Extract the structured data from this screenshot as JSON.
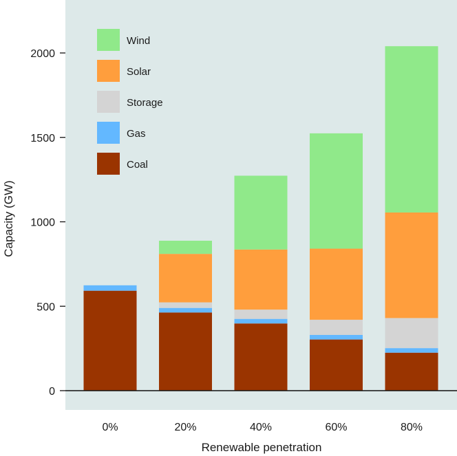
{
  "chart_data": {
    "type": "bar",
    "stacked": true,
    "categories": [
      "0%",
      "20%",
      "40%",
      "60%",
      "80%"
    ],
    "xlabel": "Renewable penetration",
    "ylabel": "Capacity (GW)",
    "ylim": [
      0,
      2220
    ],
    "yticks": [
      0,
      500,
      1000,
      1500,
      2000
    ],
    "legend_position": "top-left",
    "background": "#dde9e9",
    "series": [
      {
        "name": "Coal",
        "color": "#9a3400",
        "values": [
          592,
          463,
          398,
          303,
          225
        ]
      },
      {
        "name": "Gas",
        "color": "#63b8ff",
        "values": [
          32,
          27,
          27,
          27,
          27
        ]
      },
      {
        "name": "Storage",
        "color": "#d4d4d4",
        "values": [
          0,
          33,
          55,
          90,
          178
        ]
      },
      {
        "name": "Solar",
        "color": "#ff9e3d",
        "values": [
          0,
          287,
          356,
          421,
          625
        ]
      },
      {
        "name": "Wind",
        "color": "#90e98a",
        "values": [
          0,
          78,
          437,
          683,
          985
        ]
      }
    ],
    "legend_order": [
      "Wind",
      "Solar",
      "Storage",
      "Gas",
      "Coal"
    ]
  }
}
